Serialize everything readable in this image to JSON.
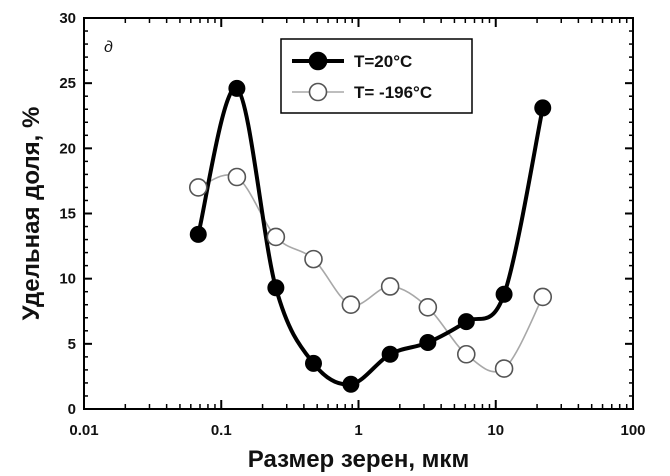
{
  "chart_data": {
    "type": "line",
    "title": "",
    "panel_label": "д",
    "xlabel": "Размер зерен, мкм",
    "ylabel": "Удельная доля, %",
    "xscale": "log",
    "xlim": [
      0.01,
      100
    ],
    "ylim": [
      0,
      30
    ],
    "x_ticks": [
      0.01,
      0.1,
      1,
      10,
      100
    ],
    "x_tick_labels": [
      "0.01",
      "0.1",
      "1",
      "10",
      "100"
    ],
    "y_ticks": [
      0,
      5,
      10,
      15,
      20,
      25,
      30
    ],
    "y_tick_labels": [
      "0",
      "5",
      "10",
      "15",
      "20",
      "25",
      "30"
    ],
    "grid": false,
    "legend_position": "top-center",
    "series": [
      {
        "name": "T=20°C",
        "color": "#000000",
        "marker": "filled-circle",
        "line_style": "solid-thick",
        "x": [
          0.068,
          0.13,
          0.25,
          0.47,
          0.88,
          1.7,
          3.2,
          6.1,
          11.5,
          22
        ],
        "values": [
          13.4,
          24.6,
          9.3,
          3.5,
          1.9,
          4.2,
          5.1,
          6.7,
          8.8,
          23.1
        ]
      },
      {
        "name": "T= -196°C",
        "color": "#999999",
        "marker": "open-circle",
        "line_style": "solid-thin",
        "x": [
          0.068,
          0.13,
          0.25,
          0.47,
          0.88,
          1.7,
          3.2,
          6.1,
          11.5,
          22
        ],
        "values": [
          17.0,
          17.8,
          13.2,
          11.5,
          8.0,
          9.4,
          7.8,
          4.2,
          3.1,
          8.6
        ]
      }
    ]
  }
}
